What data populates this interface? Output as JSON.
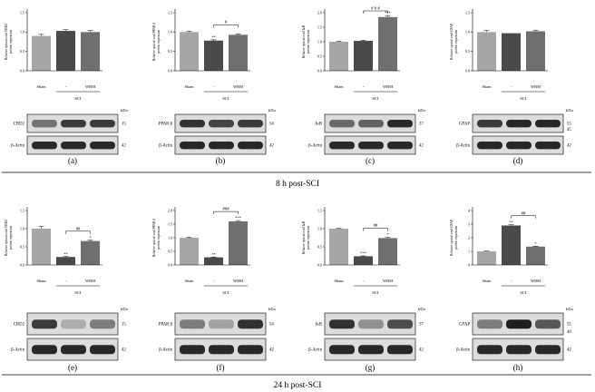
{
  "sections": [
    {
      "label": "8 h post-SCI"
    },
    {
      "label": "24 h post-SCI"
    }
  ],
  "colors": {
    "sham": "#a6a6a6",
    "sci": "#4a4a4a",
    "wbm": "#6f6f6f",
    "band": "#1e1e1e",
    "band_bg": "#dcdcdc"
  },
  "chart_data": [
    {
      "type": "bar",
      "panel": "(a)",
      "ylabel": [
        "Relative optical cord CBD2",
        "protein expression"
      ],
      "categories": [
        "Sham",
        "-",
        "WBM"
      ],
      "group_label": "SCI",
      "ylim": [
        0,
        1.5
      ],
      "yticks": [
        "0.0",
        "0.5",
        "1.0",
        "1.5"
      ],
      "values": [
        0.9,
        1.03,
        1.0
      ],
      "errors": [
        0.04,
        0.03,
        0.04
      ],
      "bar_marks": [
        "",
        "",
        ""
      ],
      "comparison": null,
      "blot": {
        "kda_label": "kDa",
        "rows": [
          {
            "name": "CBD2",
            "kda": "15"
          },
          {
            "name": "β-Actin",
            "kda": "42"
          }
        ]
      }
    },
    {
      "type": "bar",
      "panel": "(b)",
      "ylabel": [
        "Relative optical cord PPAR β",
        "protein expression"
      ],
      "categories": [
        "Sham",
        "-",
        "WBM"
      ],
      "group_label": "SCI",
      "ylim": [
        0,
        1.5
      ],
      "yticks": [
        "0.0",
        "0.5",
        "1.0",
        "1.5"
      ],
      "values": [
        1.0,
        0.78,
        0.93
      ],
      "errors": [
        0.02,
        0.02,
        0.02
      ],
      "bar_marks": [
        "",
        "**",
        ""
      ],
      "comparison": "#",
      "blot": {
        "kda_label": "kDa",
        "rows": [
          {
            "name": "PPAR β",
            "kda": "54"
          },
          {
            "name": "β-Actin",
            "kda": "42"
          }
        ]
      }
    },
    {
      "type": "bar",
      "panel": "(c)",
      "ylabel": [
        "Relative optical cord IκB",
        "protein expression"
      ],
      "categories": [
        "Sham",
        "-",
        "WBM"
      ],
      "group_label": "SCI",
      "ylim": [
        0,
        2.0
      ],
      "yticks": [
        "0.0",
        "0.5",
        "1.0",
        "1.5",
        "2.0"
      ],
      "values": [
        1.0,
        1.03,
        1.85
      ],
      "errors": [
        0.02,
        0.02,
        0.05
      ],
      "bar_marks": [
        "",
        "",
        "***"
      ],
      "comparison": "# # #",
      "blot": {
        "kda_label": "kDa",
        "rows": [
          {
            "name": "IκB",
            "kda": "37"
          },
          {
            "name": "β-Actin",
            "kda": "42"
          }
        ]
      }
    },
    {
      "type": "bar",
      "panel": "(d)",
      "ylabel": [
        "Relative optical cord GFAP",
        "protein expression"
      ],
      "categories": [
        "Sham",
        "-",
        "WBM"
      ],
      "group_label": "SCI",
      "ylim": [
        0,
        1.5
      ],
      "yticks": [
        "0.0",
        "0.5",
        "1.0",
        "1.5"
      ],
      "values": [
        1.0,
        0.97,
        1.02
      ],
      "errors": [
        0.04,
        0.0,
        0.03
      ],
      "bar_marks": [
        "",
        "",
        ""
      ],
      "comparison": null,
      "blot": {
        "kda_label": "kDa",
        "rows": [
          {
            "name": "GFAP",
            "kda": "55"
          },
          {
            "name": "β-Actin",
            "kda": "42"
          }
        ],
        "extra_kda": "45"
      }
    },
    {
      "type": "bar",
      "panel": "(e)",
      "ylabel": [
        "Relative optical cord CBD2",
        "protein expression"
      ],
      "categories": [
        "Sham",
        "-",
        "WBM"
      ],
      "group_label": "SCI",
      "ylim": [
        0,
        1.5
      ],
      "yticks": [
        "0.0",
        "0.5",
        "1.0",
        "1.5"
      ],
      "values": [
        1.0,
        0.22,
        0.66
      ],
      "errors": [
        0.06,
        0.01,
        0.02
      ],
      "bar_marks": [
        "",
        "**",
        "*"
      ],
      "comparison": "##",
      "blot": {
        "kda_label": "kDa",
        "rows": [
          {
            "name": "CBD2",
            "kda": "15"
          },
          {
            "name": "β-Actin",
            "kda": "42"
          }
        ]
      }
    },
    {
      "type": "bar",
      "panel": "(f)",
      "ylabel": [
        "Relative optical cord PPAR β",
        "protein expression"
      ],
      "categories": [
        "Sham",
        "-",
        "WBM"
      ],
      "group_label": "SCI",
      "ylim": [
        0,
        2.0
      ],
      "yticks": [
        "0.0",
        "0.5",
        "1.0",
        "1.5",
        "2.0"
      ],
      "values": [
        1.0,
        0.28,
        1.6
      ],
      "errors": [
        0.02,
        0.01,
        0.03
      ],
      "bar_marks": [
        "",
        "**",
        "***"
      ],
      "comparison": "###",
      "blot": {
        "kda_label": "kDa",
        "rows": [
          {
            "name": "PPAR β",
            "kda": "54"
          },
          {
            "name": "β-Actin",
            "kda": "42"
          }
        ]
      }
    },
    {
      "type": "bar",
      "panel": "(g)",
      "ylabel": [
        "Relative optical cord IκB",
        "protein expression"
      ],
      "categories": [
        "Sham",
        "-",
        "WBM"
      ],
      "group_label": "SCI",
      "ylim": [
        0,
        1.5
      ],
      "yticks": [
        "0.0",
        "0.5",
        "1.0",
        "1.5"
      ],
      "values": [
        1.0,
        0.24,
        0.74
      ],
      "errors": [
        0.01,
        0.01,
        0.02
      ],
      "bar_marks": [
        "",
        "***",
        "*"
      ],
      "comparison": "##",
      "blot": {
        "kda_label": "kDa",
        "rows": [
          {
            "name": "IκB",
            "kda": "37"
          },
          {
            "name": "β-Actin",
            "kda": "42"
          }
        ]
      }
    },
    {
      "type": "bar",
      "panel": "(h)",
      "ylabel": [
        "Relative optical cord GFAP",
        "protein expression"
      ],
      "categories": [
        "Sham",
        "-",
        "WBM"
      ],
      "group_label": "SCI",
      "ylim": [
        0,
        4
      ],
      "yticks": [
        "0",
        "1",
        "2",
        "3",
        "4"
      ],
      "values": [
        1.0,
        2.9,
        1.35
      ],
      "errors": [
        0.02,
        0.05,
        0.03
      ],
      "bar_marks": [
        "",
        "**",
        "*"
      ],
      "comparison": "##",
      "blot": {
        "kda_label": "kDa",
        "rows": [
          {
            "name": "GFAP",
            "kda": "55"
          },
          {
            "name": "β-Actin",
            "kda": "42"
          }
        ],
        "extra_kda": "48"
      }
    }
  ]
}
